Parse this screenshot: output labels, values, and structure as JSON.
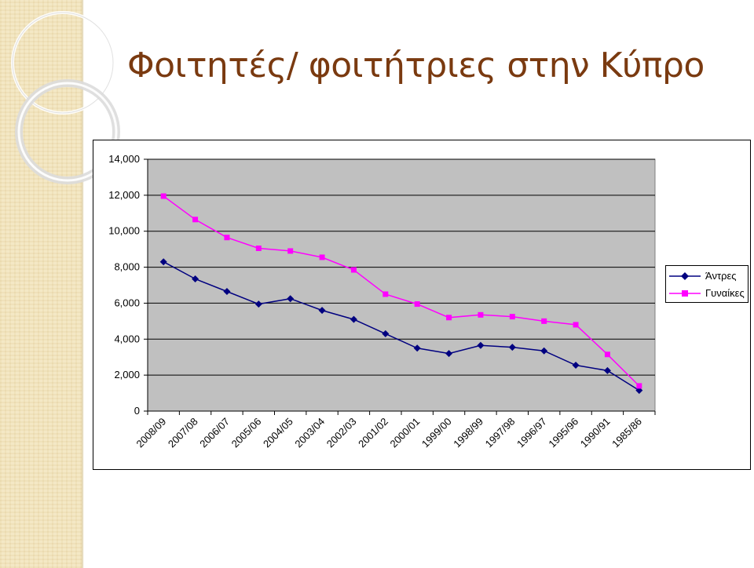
{
  "slide": {
    "title": "Φοιτητές/ φοιτήτριες στην Κύπρο",
    "title_color": "#7a3a10",
    "strip_color": "#f3e6bf"
  },
  "chart_data": {
    "type": "line",
    "title": "",
    "xlabel": "",
    "ylabel": "",
    "categories": [
      "2008/09",
      "2007/08",
      "2006/07",
      "2005/06",
      "2004/05",
      "2003/04",
      "2002/03",
      "2001/02",
      "2000/01",
      "1999/00",
      "1998/99",
      "1997/98",
      "1996/97",
      "1995/96",
      "1990/91",
      "1985/86"
    ],
    "ylim": [
      0,
      14000
    ],
    "yticks": [
      "0",
      "2,000",
      "4,000",
      "6,000",
      "8,000",
      "10,000",
      "12,000",
      "14,000"
    ],
    "ytick_values": [
      0,
      2000,
      4000,
      6000,
      8000,
      10000,
      12000,
      14000
    ],
    "grid": true,
    "plot_background": "#c0c0c0",
    "legend_position": "right",
    "series": [
      {
        "name": "Άντρες",
        "color": "#000080",
        "marker": "diamond",
        "values": [
          8300,
          7350,
          6650,
          5950,
          6250,
          5600,
          5100,
          4300,
          3500,
          3200,
          3650,
          3550,
          3350,
          2550,
          2250,
          1150
        ]
      },
      {
        "name": "Γυναίκες",
        "color": "#ff00ff",
        "marker": "square",
        "values": [
          11950,
          10650,
          9650,
          9050,
          8900,
          8550,
          7850,
          6500,
          5950,
          5200,
          5350,
          5250,
          5000,
          4800,
          3150,
          1400
        ]
      }
    ]
  }
}
